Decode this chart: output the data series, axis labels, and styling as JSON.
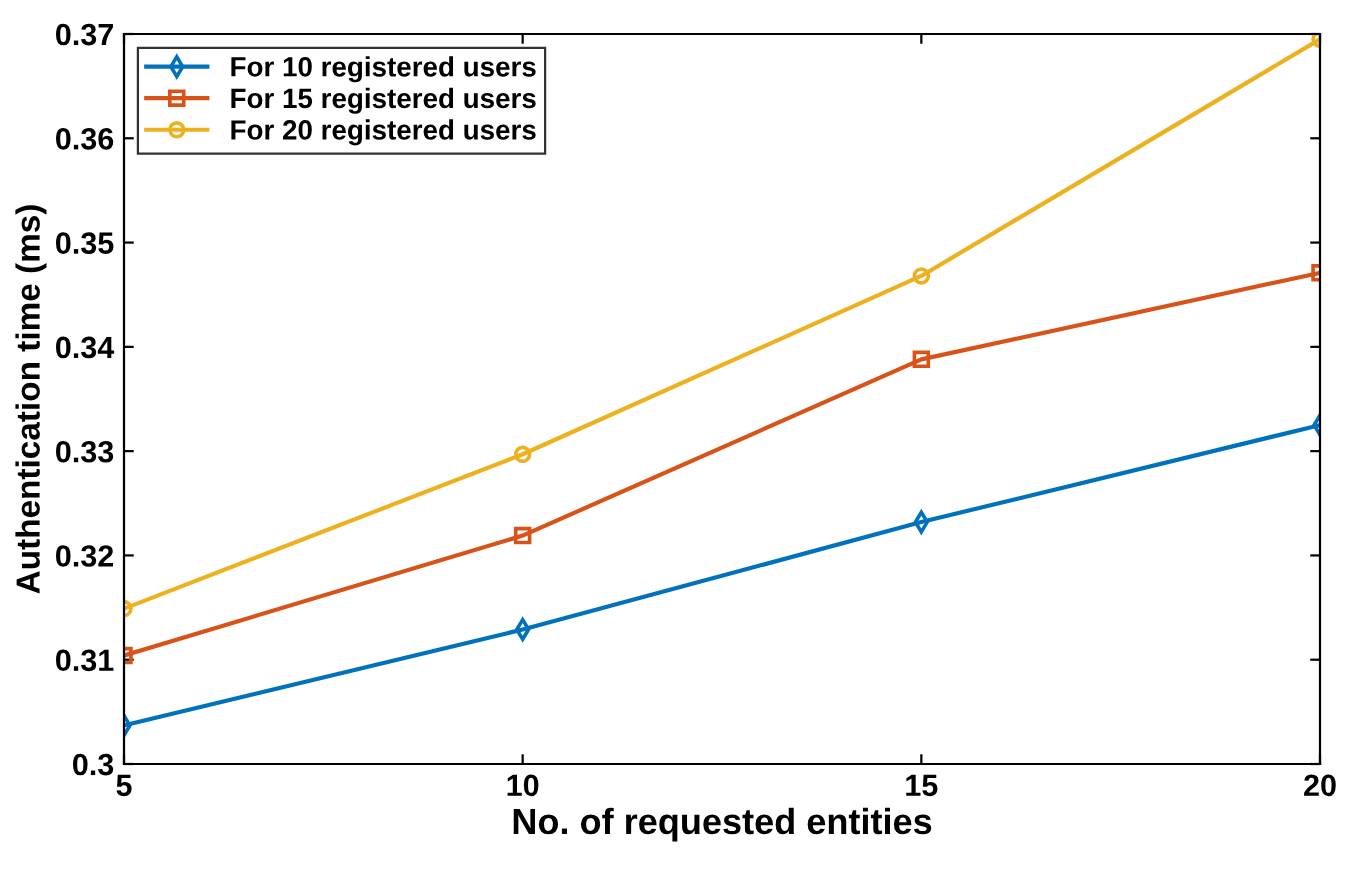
{
  "chart_data": {
    "type": "line",
    "xlabel": "No. of requested entities",
    "ylabel": "Authentication time (ms)",
    "x": [
      5,
      10,
      15,
      20
    ],
    "series": [
      {
        "name": "For 10 registered users",
        "color": "#0072bd",
        "marker": "diamond",
        "values": [
          0.3037,
          0.3129,
          0.3232,
          0.3325
        ]
      },
      {
        "name": "For 15 registered users",
        "color": "#d95319",
        "marker": "square",
        "values": [
          0.3104,
          0.3219,
          0.3388,
          0.3471
        ]
      },
      {
        "name": "For 20 registered users",
        "color": "#edb120",
        "marker": "circle",
        "values": [
          0.3149,
          0.3297,
          0.3468,
          0.3695
        ]
      }
    ],
    "xlim": [
      5,
      20
    ],
    "xticks": [
      5,
      10,
      15,
      20
    ],
    "ylim": [
      0.3,
      0.37
    ],
    "yticks": [
      0.3,
      0.31,
      0.32,
      0.33,
      0.34,
      0.35,
      0.36,
      0.37
    ],
    "grid": false,
    "legend": "top left",
    "line_style": "solid"
  }
}
